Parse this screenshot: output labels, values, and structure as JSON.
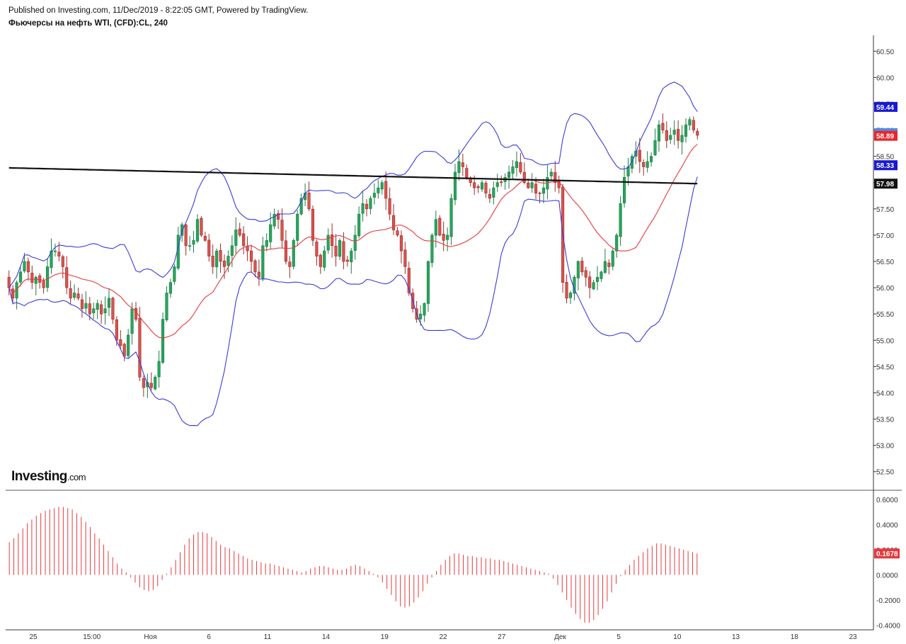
{
  "header": {
    "published": "Published on Investing.com, 11/Dec/2019 - 8:22:05 GMT, Powered by TradingView.",
    "title": "Фьючерсы на нефть WTI, (CFD):CL, 240"
  },
  "logo": {
    "main": "Investing",
    "suffix": ".com"
  },
  "colors": {
    "up": "#26a65b",
    "down": "#d9534f",
    "boll_band": "#3b3bdc",
    "boll_mid": "#e8383d",
    "ma_line": "#111111",
    "hist": "#e8383d"
  },
  "chart_data": [
    {
      "type": "candlestick",
      "title": "Фьючерсы на нефть WTI, (CFD):CL, 240",
      "grid": false,
      "x_tick_labels": [
        "25",
        "15:00",
        "Ноя",
        "6",
        "11",
        "14",
        "19",
        "22",
        "27",
        "Дек",
        "5",
        "10",
        "13",
        "18",
        "23"
      ],
      "ylim": [
        52.2,
        60.8
      ],
      "y_ticks": [
        52.5,
        53.0,
        53.5,
        54.0,
        54.5,
        55.0,
        55.5,
        56.0,
        56.5,
        57.0,
        57.5,
        58.0,
        58.5,
        59.0,
        59.5,
        60.0,
        60.5
      ],
      "price_labels": [
        {
          "value": 59.44,
          "label": "59.44",
          "color": "#1a1ad0"
        },
        {
          "value": 58.94,
          "label": "58.94",
          "color": "#4a8ee8"
        },
        {
          "value": 58.89,
          "label": "58.89",
          "color": "#e8262b"
        },
        {
          "value": 58.33,
          "label": "58.33",
          "color": "#1a1ad0"
        },
        {
          "value": 57.98,
          "label": "57.98",
          "color": "#111111"
        }
      ],
      "close_series": [
        56.0,
        55.8,
        56.1,
        56.3,
        56.5,
        56.3,
        56.1,
        56.2,
        56.1,
        56.0,
        56.4,
        56.7,
        56.7,
        56.6,
        56.4,
        56.0,
        55.8,
        55.9,
        55.8,
        55.6,
        55.7,
        55.5,
        55.6,
        55.7,
        55.5,
        55.6,
        55.8,
        55.4,
        55.0,
        54.9,
        54.7,
        55.1,
        55.6,
        55.4,
        54.3,
        54.1,
        54.2,
        54.1,
        54.3,
        54.6,
        55.4,
        55.9,
        56.1,
        56.4,
        57.0,
        57.2,
        56.8,
        56.8,
        56.9,
        57.3,
        57.0,
        56.9,
        56.6,
        56.4,
        56.7,
        56.5,
        56.4,
        56.6,
        56.8,
        57.1,
        57.0,
        56.8,
        56.7,
        56.5,
        56.3,
        56.2,
        56.8,
        56.9,
        57.2,
        57.4,
        57.3,
        56.9,
        56.5,
        56.4,
        56.9,
        57.4,
        57.7,
        57.8,
        57.5,
        56.9,
        56.6,
        56.4,
        56.7,
        57.0,
        56.8,
        56.6,
        56.9,
        56.5,
        56.5,
        56.7,
        57.0,
        57.4,
        57.6,
        57.5,
        57.7,
        57.8,
        57.9,
        58.0,
        57.7,
        57.4,
        57.1,
        57.0,
        56.7,
        56.4,
        55.9,
        55.6,
        55.4,
        55.5,
        55.7,
        56.5,
        57.0,
        57.3,
        57.0,
        56.9,
        57.0,
        57.7,
        58.2,
        58.4,
        58.3,
        58.1,
        58.0,
        57.9,
        57.9,
        58.0,
        57.8,
        57.7,
        57.9,
        58.0,
        58.0,
        58.1,
        58.2,
        58.3,
        58.4,
        58.2,
        58.0,
        57.9,
        58.0,
        57.8,
        57.8,
        57.9,
        58.1,
        58.2,
        58.0,
        57.9,
        56.1,
        55.8,
        55.9,
        56.2,
        56.5,
        56.3,
        56.2,
        56.0,
        56.1,
        56.2,
        56.3,
        56.5,
        56.4,
        56.7,
        57.0,
        57.6,
        58.1,
        58.3,
        58.5,
        58.6,
        58.4,
        58.3,
        58.4,
        58.5,
        58.8,
        59.1,
        59.0,
        58.8,
        58.9,
        59.0,
        58.8,
        58.9,
        59.1,
        59.2,
        59.0,
        58.9
      ]
    },
    {
      "type": "bar",
      "subtype": "histogram",
      "ylim": [
        -0.42,
        0.65
      ],
      "y_ticks": [
        -0.4,
        -0.2,
        0.0,
        0.2,
        0.4,
        0.6
      ],
      "y_tick_labels": [
        "-0.4000",
        "-0.2000",
        "0.0000",
        "0.2000",
        "0.4000",
        "0.6000"
      ],
      "last_value_label": "0.1678",
      "values": [
        0.26,
        0.29,
        0.33,
        0.37,
        0.41,
        0.44,
        0.47,
        0.49,
        0.51,
        0.52,
        0.53,
        0.54,
        0.54,
        0.53,
        0.52,
        0.49,
        0.46,
        0.42,
        0.38,
        0.33,
        0.29,
        0.24,
        0.19,
        0.14,
        0.09,
        0.05,
        0.02,
        -0.02,
        -0.06,
        -0.1,
        -0.12,
        -0.13,
        -0.12,
        -0.09,
        -0.04,
        0.01,
        0.06,
        0.12,
        0.18,
        0.24,
        0.29,
        0.32,
        0.34,
        0.34,
        0.33,
        0.3,
        0.27,
        0.24,
        0.22,
        0.21,
        0.19,
        0.17,
        0.15,
        0.13,
        0.12,
        0.11,
        0.1,
        0.09,
        0.09,
        0.08,
        0.07,
        0.06,
        0.05,
        0.04,
        0.03,
        0.02,
        0.03,
        0.05,
        0.06,
        0.07,
        0.07,
        0.06,
        0.05,
        0.04,
        0.04,
        0.05,
        0.07,
        0.08,
        0.07,
        0.05,
        0.03,
        0.01,
        -0.02,
        -0.06,
        -0.11,
        -0.16,
        -0.21,
        -0.25,
        -0.26,
        -0.25,
        -0.22,
        -0.18,
        -0.13,
        -0.07,
        -0.02,
        0.03,
        0.08,
        0.12,
        0.15,
        0.17,
        0.17,
        0.16,
        0.15,
        0.15,
        0.14,
        0.14,
        0.13,
        0.13,
        0.12,
        0.12,
        0.11,
        0.1,
        0.09,
        0.08,
        0.07,
        0.06,
        0.05,
        0.04,
        0.03,
        0.02,
        0.01,
        -0.03,
        -0.08,
        -0.14,
        -0.2,
        -0.26,
        -0.31,
        -0.35,
        -0.38,
        -0.38,
        -0.36,
        -0.32,
        -0.27,
        -0.21,
        -0.14,
        -0.07,
        -0.01,
        0.04,
        0.08,
        0.12,
        0.15,
        0.18,
        0.21,
        0.23,
        0.25,
        0.25,
        0.24,
        0.23,
        0.22,
        0.21,
        0.2,
        0.19,
        0.18,
        0.17
      ]
    }
  ]
}
